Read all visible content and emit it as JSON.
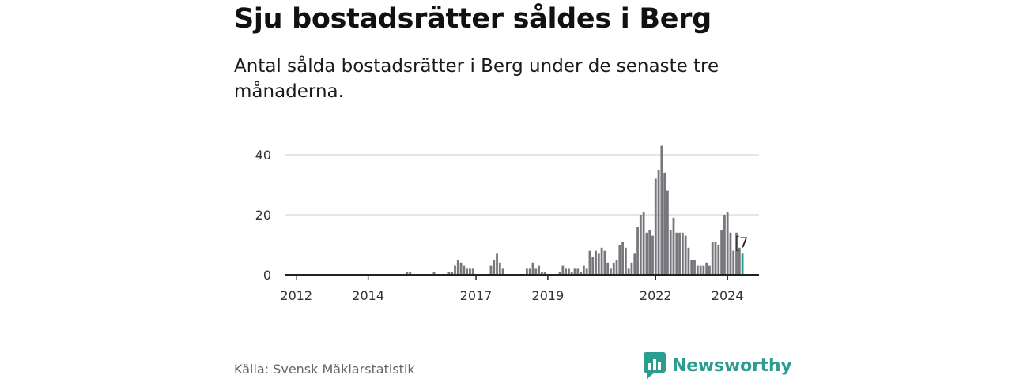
{
  "title": "Sju bostadsrätter såldes i Berg",
  "subtitle": "Antal sålda bostadsrätter i Berg under de senaste tre månaderna.",
  "source": "Källa: Svensk Mäklarstatistik",
  "brand": "Newsworthy",
  "colors": {
    "bar": "#76767c",
    "highlight": "#2a9d8f",
    "grid": "#dddddd",
    "axis": "#222222",
    "brand": "#2a9d8f"
  },
  "chart_data": {
    "type": "bar",
    "title": "Sju bostadsrätter såldes i Berg",
    "xlabel": "",
    "ylabel": "",
    "ylim": [
      0,
      43
    ],
    "yticks": [
      "0",
      "20",
      "40"
    ],
    "xtick_labels": [
      "2012",
      "2014",
      "2017",
      "2019",
      "2022",
      "2024"
    ],
    "highlight_label": "7",
    "start": "2011-10",
    "frequency": "monthly",
    "values": [
      0,
      0,
      0,
      0,
      0,
      0,
      0,
      0,
      0,
      0,
      0,
      0,
      0,
      0,
      0,
      0,
      0,
      0,
      0,
      0,
      0,
      0,
      0,
      0,
      0,
      0,
      0,
      0,
      0,
      0,
      0,
      0,
      0,
      0,
      0,
      0,
      0,
      0,
      0,
      0,
      1,
      1,
      0,
      0,
      0,
      0,
      0,
      0,
      0,
      1,
      0,
      0,
      0,
      0,
      1,
      1,
      3,
      5,
      4,
      3,
      2,
      2,
      2,
      0,
      0,
      0,
      0,
      0,
      3,
      5,
      7,
      4,
      2,
      0,
      0,
      0,
      0,
      0,
      0,
      0,
      2,
      2,
      4,
      2,
      3,
      1,
      1,
      0,
      0,
      0,
      0,
      1,
      3,
      2,
      2,
      1,
      2,
      2,
      1,
      3,
      2,
      8,
      6,
      8,
      7,
      9,
      8,
      4,
      2,
      4,
      5,
      10,
      11,
      9,
      2,
      4,
      7,
      16,
      20,
      21,
      14,
      15,
      13,
      32,
      35,
      43,
      34,
      28,
      15,
      19,
      14,
      14,
      14,
      13,
      9,
      5,
      5,
      3,
      3,
      3,
      4,
      3,
      11,
      11,
      10,
      15,
      20,
      21,
      14,
      8,
      14,
      9,
      7
    ]
  }
}
